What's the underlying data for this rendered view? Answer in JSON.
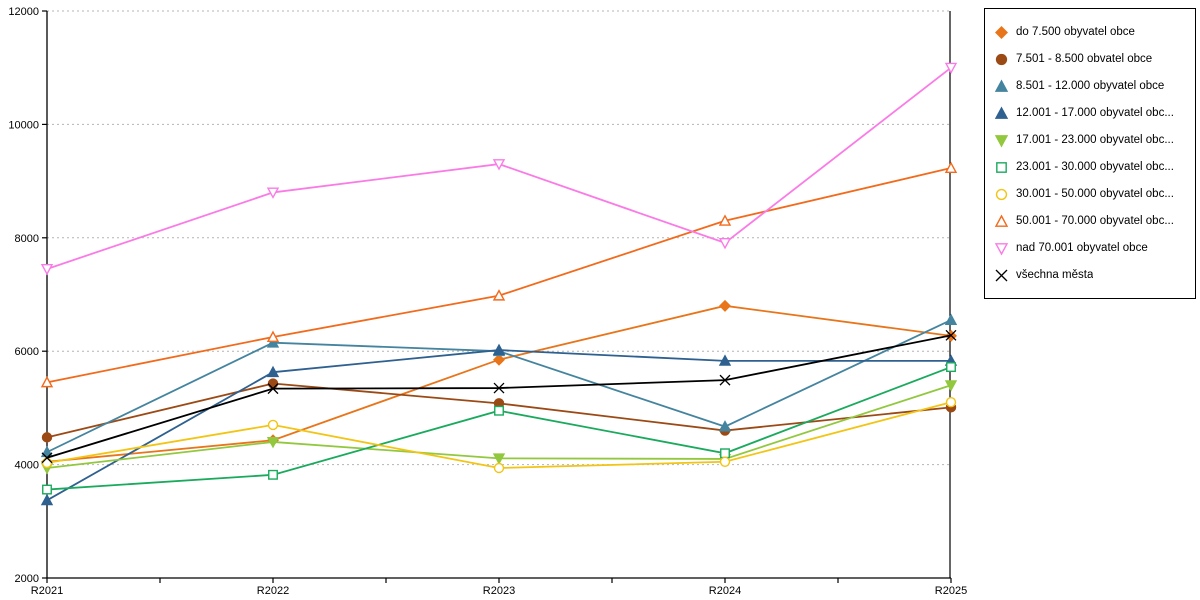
{
  "chart_data": {
    "type": "line",
    "categories": [
      "R2021",
      "R2022",
      "R2023",
      "R2024",
      "R2025"
    ],
    "series": [
      {
        "name": "do 7.500 obyvatel obce",
        "color": "#E8751A",
        "marker": "diamond",
        "marker_fill": "solid",
        "values": [
          4050,
          4430,
          5850,
          6800,
          6270
        ]
      },
      {
        "name": "7.501 - 8.500 obvatel obce",
        "color": "#9C4A15",
        "marker": "circle",
        "marker_fill": "solid",
        "values": [
          4480,
          5430,
          5080,
          4600,
          5010
        ]
      },
      {
        "name": "8.501 - 12.000 obyvatel obce",
        "color": "#44849E",
        "marker": "triangle-up",
        "marker_fill": "solid",
        "values": [
          4220,
          6150,
          6000,
          4670,
          6550
        ]
      },
      {
        "name": "12.001 - 17.000 obyvatel obc...",
        "color": "#2E6090",
        "marker": "triangle-up",
        "marker_fill": "solid",
        "values": [
          3370,
          5630,
          6020,
          5830,
          5830
        ]
      },
      {
        "name": "17.001 - 23.000 obyvatel obc...",
        "color": "#92C83E",
        "marker": "triangle-down",
        "marker_fill": "solid",
        "values": [
          3940,
          4400,
          4110,
          4100,
          5400
        ]
      },
      {
        "name": "23.001 - 30.000 obyvatel obc...",
        "color": "#1AAA5D",
        "marker": "square",
        "marker_fill": "open",
        "values": [
          3560,
          3820,
          4950,
          4200,
          5720
        ]
      },
      {
        "name": "30.001 - 50.000 obyvatel obc...",
        "color": "#F2C413",
        "marker": "circle",
        "marker_fill": "open",
        "values": [
          4030,
          4700,
          3940,
          4050,
          5100
        ]
      },
      {
        "name": "50.001 - 70.000 obyvatel obc...",
        "color": "#F26A1B",
        "marker": "triangle-up",
        "marker_fill": "open",
        "values": [
          5450,
          6250,
          6980,
          8300,
          9230
        ]
      },
      {
        "name": "nad 70.001 obyvatel obce",
        "color": "#FA7BE6",
        "marker": "triangle-down",
        "marker_fill": "open",
        "values": [
          7450,
          8800,
          9300,
          7910,
          11000
        ]
      },
      {
        "name": "všechna města",
        "color": "#000000",
        "marker": "x",
        "marker_fill": "solid",
        "values": [
          4120,
          5340,
          5350,
          5490,
          6280
        ]
      }
    ],
    "title": "",
    "xlabel": "",
    "ylabel": "",
    "ylim": [
      2000,
      12000
    ],
    "ytick_step": 2000,
    "yticks": [
      2000,
      4000,
      6000,
      8000,
      10000,
      12000
    ],
    "grid": "horizontal dotted gray",
    "legend_position": "right",
    "axis_color": "#000000",
    "grid_color": "#B4B4B4"
  }
}
